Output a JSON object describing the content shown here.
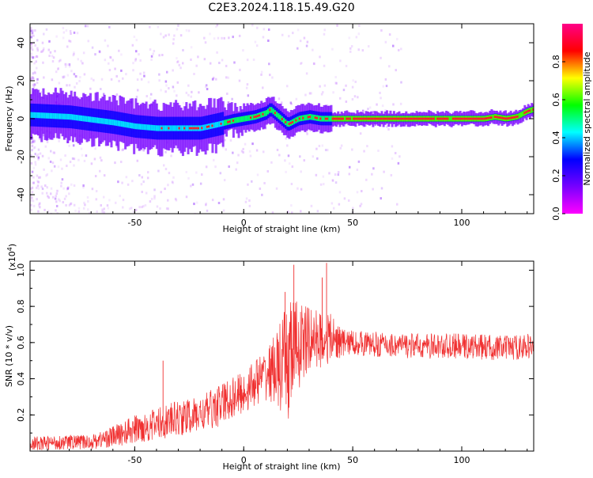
{
  "title": "C2E3.2024.118.15.49.G20",
  "chart_data": [
    {
      "type": "heatmap",
      "xlabel": "Height of straight line (km)",
      "ylabel": "Frequency (Hz)",
      "xlim": [
        -98,
        133
      ],
      "ylim": [
        -50,
        50
      ],
      "xticks": [
        -50,
        0,
        50,
        100
      ],
      "yticks": [
        -40,
        -20,
        0,
        20,
        40
      ],
      "colorbar": {
        "label": "Normalized spectral amplitude",
        "range": [
          0.0,
          1.0
        ],
        "ticks": [
          "0.0",
          "0.2",
          "0.4",
          "0.6",
          "0.8"
        ],
        "colormap": [
          "#ff00ff",
          "#7700ff",
          "#0000ff",
          "#00ffff",
          "#00ff00",
          "#ffff00",
          "#ff0000",
          "#ff0088"
        ]
      },
      "ridge": {
        "x": [
          -98,
          -80,
          -60,
          -50,
          -40,
          -30,
          -20,
          -12,
          -5,
          0,
          5,
          10,
          12,
          15,
          20,
          25,
          30,
          35,
          40,
          50,
          60,
          80,
          100,
          110,
          115,
          120,
          125,
          130,
          133
        ],
        "y": [
          2,
          1,
          -2,
          -4,
          -5,
          -5,
          -5,
          -3,
          -1,
          0,
          1,
          3,
          5,
          2,
          -3,
          0,
          1,
          0,
          0,
          0,
          0,
          0,
          0,
          0,
          1,
          0,
          1,
          4,
          5
        ]
      },
      "grid": false
    },
    {
      "type": "line",
      "xlabel": "Height of straight line (km)",
      "ylabel": "SNR (10 * v/v)",
      "yscale_label": "(x10",
      "yscale_exp": "4",
      "yscale_close": ")",
      "xlim": [
        -98,
        133
      ],
      "ylim": [
        0,
        1.05
      ],
      "xticks": [
        -50,
        0,
        50,
        100
      ],
      "yticks": [
        "0.2",
        "0.4",
        "0.6",
        "0.8",
        "1.0"
      ],
      "color": "#f03030",
      "envelope": {
        "x": [
          -98,
          -80,
          -70,
          -60,
          -50,
          -40,
          -30,
          -20,
          -15,
          -10,
          -5,
          0,
          5,
          10,
          15,
          18,
          20,
          22,
          25,
          30,
          35,
          40,
          45,
          50,
          60,
          80,
          100,
          120,
          133
        ],
        "mean": [
          0.04,
          0.05,
          0.05,
          0.08,
          0.12,
          0.15,
          0.18,
          0.2,
          0.23,
          0.26,
          0.3,
          0.32,
          0.38,
          0.42,
          0.46,
          0.45,
          0.48,
          0.55,
          0.58,
          0.62,
          0.62,
          0.62,
          0.6,
          0.6,
          0.59,
          0.58,
          0.58,
          0.57,
          0.58
        ],
        "spread": [
          0.04,
          0.04,
          0.04,
          0.06,
          0.08,
          0.09,
          0.1,
          0.1,
          0.11,
          0.12,
          0.12,
          0.12,
          0.13,
          0.14,
          0.2,
          0.3,
          0.35,
          0.32,
          0.25,
          0.18,
          0.16,
          0.14,
          0.08,
          0.07,
          0.07,
          0.07,
          0.07,
          0.07,
          0.07
        ]
      },
      "peaks": [
        {
          "x": -37,
          "y": 0.5
        },
        {
          "x": 23,
          "y": 1.03
        },
        {
          "x": 38,
          "y": 1.04
        },
        {
          "x": 19,
          "y": 0.88
        },
        {
          "x": 36,
          "y": 0.96
        }
      ]
    }
  ]
}
